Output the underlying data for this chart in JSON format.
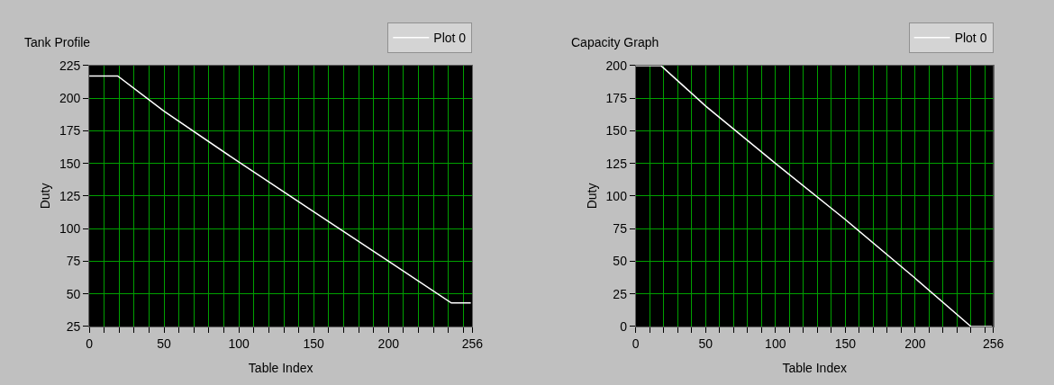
{
  "chart_data": [
    {
      "type": "line",
      "title": "Tank Profile",
      "xlabel": "Table Index",
      "ylabel": "Duty",
      "xlim": [
        0,
        256
      ],
      "ylim": [
        25,
        225
      ],
      "xticks": [
        0,
        {
          "value": 10,
          "label": null
        },
        {
          "value": 20,
          "label": null
        },
        {
          "value": 30,
          "label": null
        },
        {
          "value": 40,
          "label": null
        },
        50,
        {
          "value": 60,
          "label": null
        },
        {
          "value": 70,
          "label": null
        },
        {
          "value": 80,
          "label": null
        },
        {
          "value": 90,
          "label": null
        },
        100,
        {
          "value": 110,
          "label": null
        },
        {
          "value": 120,
          "label": null
        },
        {
          "value": 130,
          "label": null
        },
        {
          "value": 140,
          "label": null
        },
        150,
        {
          "value": 160,
          "label": null
        },
        {
          "value": 170,
          "label": null
        },
        {
          "value": 180,
          "label": null
        },
        {
          "value": 190,
          "label": null
        },
        200,
        {
          "value": 210,
          "label": null
        },
        {
          "value": 220,
          "label": null
        },
        {
          "value": 230,
          "label": null
        },
        {
          "value": 240,
          "label": null
        },
        {
          "value": 250,
          "label": null
        },
        256
      ],
      "yticks": [
        25,
        50,
        75,
        100,
        125,
        150,
        175,
        200,
        225
      ],
      "grid": true,
      "legend": "top right",
      "marker": "none",
      "line_style": "solid",
      "series": [
        {
          "name": "Plot 0",
          "color": "#ffffff",
          "x": [
            0,
            19,
            50,
            100,
            150,
            200,
            242,
            255
          ],
          "values": [
            217,
            217,
            190,
            151,
            113,
            75,
            43,
            43
          ]
        }
      ]
    },
    {
      "type": "line",
      "title": "Capacity Graph",
      "xlabel": "Table Index",
      "ylabel": "Duty",
      "xlim": [
        0,
        256
      ],
      "ylim": [
        0,
        200
      ],
      "xticks": [
        0,
        {
          "value": 10,
          "label": null
        },
        {
          "value": 20,
          "label": null
        },
        {
          "value": 30,
          "label": null
        },
        {
          "value": 40,
          "label": null
        },
        50,
        {
          "value": 60,
          "label": null
        },
        {
          "value": 70,
          "label": null
        },
        {
          "value": 80,
          "label": null
        },
        {
          "value": 90,
          "label": null
        },
        100,
        {
          "value": 110,
          "label": null
        },
        {
          "value": 120,
          "label": null
        },
        {
          "value": 130,
          "label": null
        },
        {
          "value": 140,
          "label": null
        },
        150,
        {
          "value": 160,
          "label": null
        },
        {
          "value": 170,
          "label": null
        },
        {
          "value": 180,
          "label": null
        },
        {
          "value": 190,
          "label": null
        },
        200,
        {
          "value": 210,
          "label": null
        },
        {
          "value": 220,
          "label": null
        },
        {
          "value": 230,
          "label": null
        },
        {
          "value": 240,
          "label": null
        },
        {
          "value": 250,
          "label": null
        },
        256
      ],
      "yticks": [
        0,
        25,
        50,
        75,
        100,
        125,
        150,
        175,
        200
      ],
      "grid": true,
      "legend": "top right",
      "marker": "none",
      "line_style": "solid",
      "series": [
        {
          "name": "Plot 0",
          "color": "#ffffff",
          "x": [
            0,
            18,
            50,
            100,
            150,
            200,
            240,
            255
          ],
          "values": [
            200,
            200,
            169,
            125,
            82,
            37,
            0,
            0
          ]
        }
      ]
    }
  ]
}
